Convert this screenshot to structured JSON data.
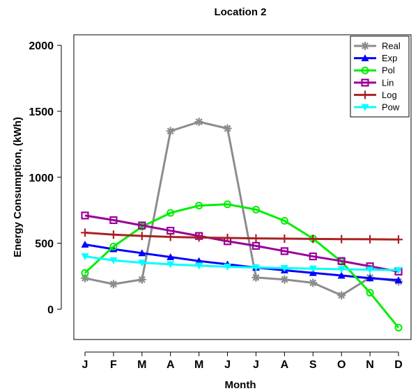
{
  "chart_data": {
    "type": "line",
    "title": "Location 2",
    "xlabel": "Month",
    "ylabel": "Energy Consumption, (kWh)",
    "categories": [
      "J",
      "F",
      "M",
      "A",
      "M",
      "J",
      "J",
      "A",
      "S",
      "O",
      "N",
      "D"
    ],
    "yticks": [
      0,
      500,
      1000,
      1500,
      2000
    ],
    "ylim": [
      -230,
      2080
    ],
    "grid": false,
    "legend_position": "top-right",
    "series": [
      {
        "name": "Real",
        "color": "#8c8c8c",
        "marker": "asterisk",
        "values": [
          235,
          190,
          225,
          1350,
          1420,
          1370,
          240,
          225,
          200,
          105,
          240,
          210
        ]
      },
      {
        "name": "Exp",
        "color": "#0000ff",
        "marker": "triangle-up",
        "values": [
          490,
          455,
          425,
          395,
          365,
          340,
          315,
          295,
          275,
          255,
          235,
          220
        ]
      },
      {
        "name": "Pol",
        "color": "#00ee00",
        "marker": "circle",
        "values": [
          275,
          475,
          625,
          730,
          785,
          795,
          755,
          670,
          535,
          360,
          125,
          -140
        ]
      },
      {
        "name": "Lin",
        "color": "#990099",
        "marker": "square",
        "values": [
          710,
          675,
          635,
          595,
          555,
          515,
          480,
          440,
          400,
          365,
          325,
          285
        ]
      },
      {
        "name": "Log",
        "color": "#aa2222",
        "marker": "plus",
        "values": [
          580,
          565,
          555,
          548,
          543,
          540,
          537,
          535,
          533,
          531,
          530,
          528
        ]
      },
      {
        "name": "Pow",
        "color": "#00ffff",
        "marker": "triangle-down",
        "values": [
          400,
          370,
          352,
          340,
          330,
          322,
          316,
          311,
          307,
          303,
          299,
          296
        ]
      }
    ]
  }
}
